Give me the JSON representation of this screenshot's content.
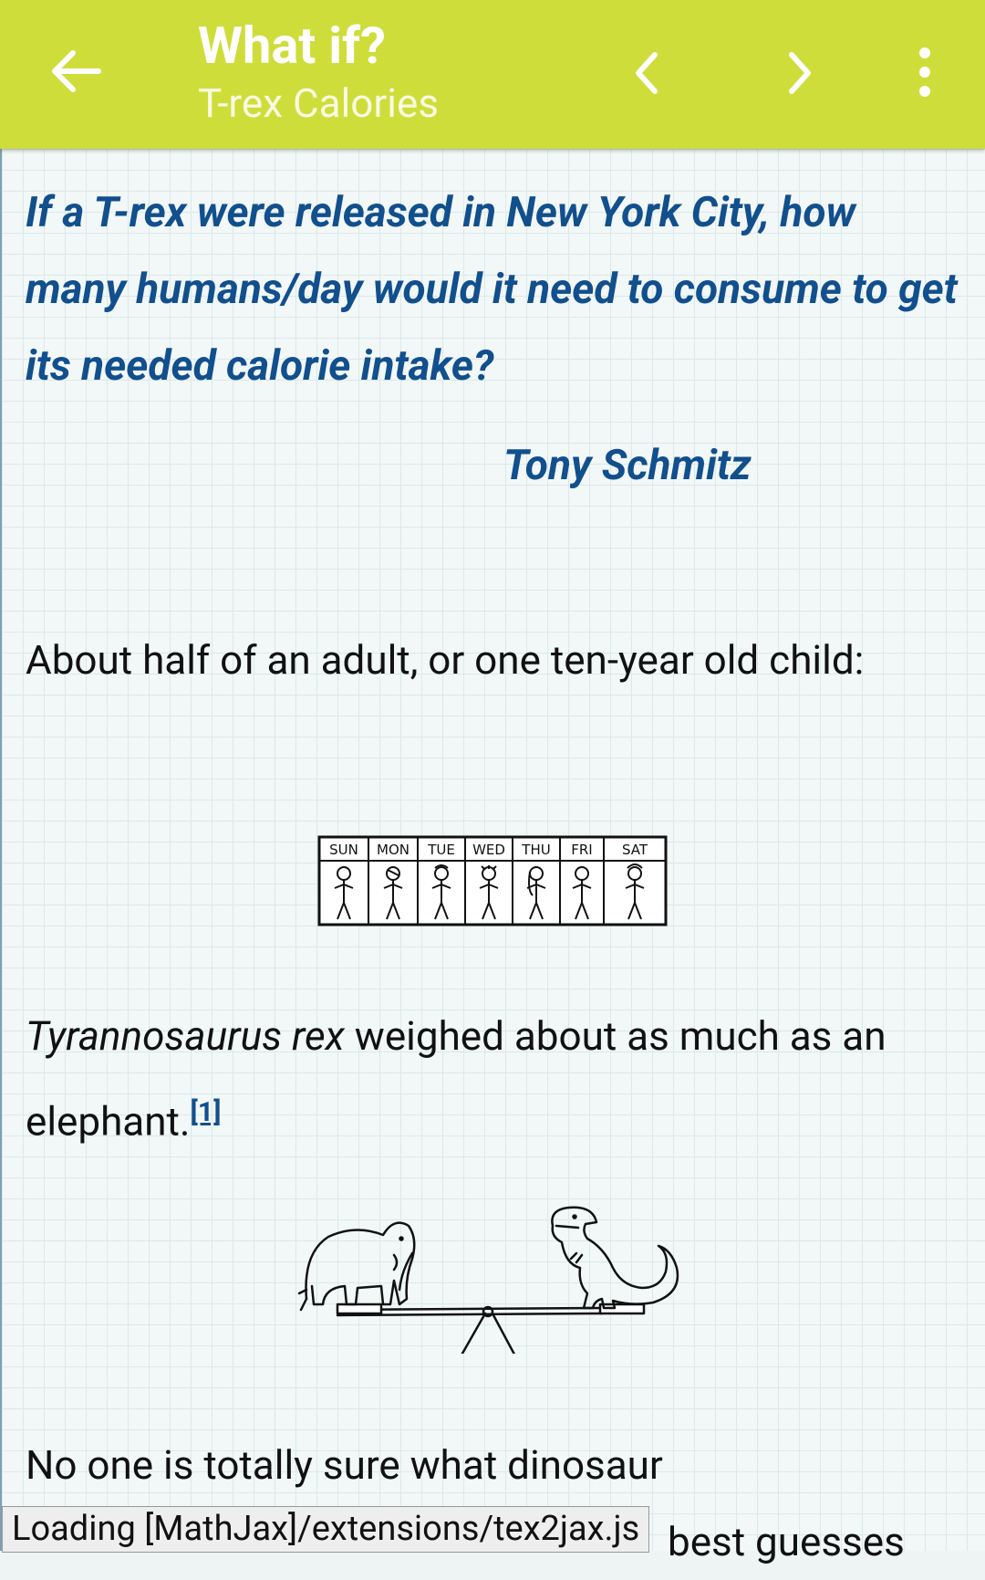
{
  "appbar": {
    "title": "What if?",
    "subtitle": "T-rex Calories",
    "icons": [
      "back-arrow-icon",
      "chevron-left-icon",
      "chevron-right-icon",
      "more-vert-icon"
    ],
    "background": "#cfdd3b"
  },
  "article": {
    "question": "If a T-rex were released in New York City, how many humans/day would it need to consume to get its needed calorie intake?",
    "asker": "Tony Schmitz",
    "para1": "About half of an adult, or one ten-year old child:",
    "calendar_days": [
      "SUN",
      "MON",
      "TUE",
      "WED",
      "THU",
      "FRI",
      "SAT"
    ],
    "para2_italic": "Tyrannosaurus rex",
    "para2_rest": " weighed about as much as an elephant.",
    "para2_ref": "[1]",
    "para3": "No one is totally sure what dinosaur"
  },
  "status": {
    "loading_text": "Loading [MathJax]/extensions/tex2jax.js",
    "partial_text": "best guesses"
  },
  "colors": {
    "link": "#114f8d",
    "text": "#111111"
  }
}
